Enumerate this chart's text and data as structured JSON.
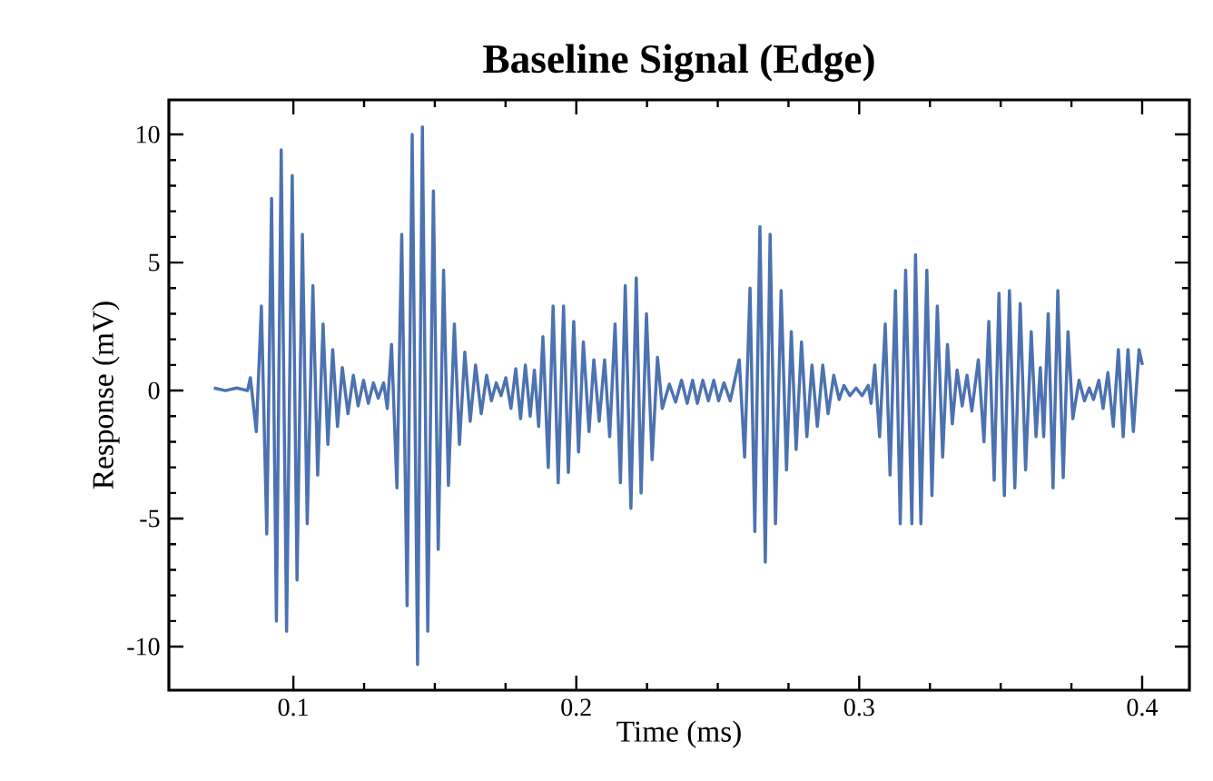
{
  "chart_data": {
    "type": "line",
    "title": "Baseline Signal (Edge)",
    "xlabel": "Time (ms)",
    "ylabel": "Response (mV)",
    "x": [
      0.0719,
      0.076,
      0.08,
      0.0838,
      0.0848,
      0.0869,
      0.0887,
      0.0906,
      0.0923,
      0.094,
      0.0957,
      0.0976,
      0.0996,
      0.1013,
      0.1032,
      0.1049,
      0.1069,
      0.1086,
      0.1105,
      0.1122,
      0.1139,
      0.1156,
      0.1173,
      0.1193,
      0.1212,
      0.1229,
      0.1248,
      0.1265,
      0.1283,
      0.13,
      0.1319,
      0.1332,
      0.1347,
      0.1366,
      0.1383,
      0.1402,
      0.142,
      0.1439,
      0.1456,
      0.1475,
      0.1495,
      0.1512,
      0.1531,
      0.1548,
      0.1569,
      0.1587,
      0.1606,
      0.1625,
      0.1644,
      0.1664,
      0.1683,
      0.17,
      0.1717,
      0.1734,
      0.1751,
      0.1769,
      0.1786,
      0.1803,
      0.182,
      0.1837,
      0.1852,
      0.1867,
      0.1882,
      0.1901,
      0.1918,
      0.1936,
      0.1955,
      0.1972,
      0.1991,
      0.2008,
      0.2025,
      0.2045,
      0.2062,
      0.2081,
      0.21,
      0.2118,
      0.2137,
      0.2156,
      0.2173,
      0.2193,
      0.2212,
      0.2229,
      0.2248,
      0.2268,
      0.2287,
      0.2304,
      0.2329,
      0.2351,
      0.2372,
      0.2392,
      0.2411,
      0.2428,
      0.2447,
      0.2467,
      0.2486,
      0.2503,
      0.2522,
      0.2544,
      0.2576,
      0.2595,
      0.2614,
      0.2631,
      0.2649,
      0.2668,
      0.2685,
      0.2704,
      0.2724,
      0.2743,
      0.276,
      0.2777,
      0.2796,
      0.2815,
      0.2833,
      0.2852,
      0.2871,
      0.289,
      0.291,
      0.2929,
      0.2946,
      0.2967,
      0.2989,
      0.301,
      0.3032,
      0.3042,
      0.3055,
      0.3072,
      0.3092,
      0.3109,
      0.3128,
      0.3145,
      0.3164,
      0.3186,
      0.3199,
      0.3218,
      0.3239,
      0.3257,
      0.3276,
      0.3295,
      0.3312,
      0.3329,
      0.3346,
      0.3364,
      0.3381,
      0.3398,
      0.3421,
      0.3441,
      0.3458,
      0.3477,
      0.3494,
      0.3513,
      0.3531,
      0.355,
      0.3569,
      0.3588,
      0.3608,
      0.3625,
      0.364,
      0.3652,
      0.3668,
      0.3685,
      0.3702,
      0.3721,
      0.3738,
      0.3755,
      0.3777,
      0.3796,
      0.3813,
      0.3828,
      0.3847,
      0.3862,
      0.3879,
      0.3898,
      0.3916,
      0.3933,
      0.395,
      0.3969,
      0.3989,
      0.4001
    ],
    "series": [
      {
        "color": "#4c72b0",
        "values": [
          0.1,
          0.0,
          0.1,
          0.0,
          0.5,
          -1.6,
          3.3,
          -5.6,
          7.5,
          -9.0,
          9.4,
          -9.4,
          8.4,
          -7.4,
          6.1,
          -5.2,
          4.1,
          -3.3,
          2.6,
          -2.1,
          1.6,
          -1.4,
          0.9,
          -0.9,
          0.6,
          -0.6,
          0.4,
          -0.5,
          0.3,
          -0.3,
          0.3,
          -0.7,
          1.8,
          -3.8,
          6.1,
          -8.4,
          10.0,
          -10.7,
          10.3,
          -9.4,
          7.8,
          -6.2,
          4.7,
          -3.7,
          2.6,
          -2.1,
          1.5,
          -1.2,
          1.0,
          -0.9,
          0.6,
          -0.4,
          0.3,
          -0.2,
          0.5,
          -0.7,
          0.85,
          -1.1,
          1.0,
          -1.0,
          0.8,
          -1.4,
          2.1,
          -3.0,
          3.3,
          -3.6,
          3.3,
          -3.2,
          2.7,
          -2.4,
          1.9,
          -1.6,
          1.2,
          -1.2,
          1.2,
          -1.8,
          2.6,
          -3.6,
          4.1,
          -4.6,
          4.4,
          -4.0,
          3.0,
          -2.7,
          1.3,
          -0.7,
          0.25,
          -0.45,
          0.4,
          -0.5,
          0.4,
          -0.5,
          0.4,
          -0.4,
          0.4,
          -0.4,
          0.3,
          -0.4,
          1.2,
          -2.6,
          4.0,
          -5.5,
          6.4,
          -6.7,
          6.1,
          -5.2,
          3.9,
          -3.1,
          2.3,
          -2.3,
          1.9,
          -1.8,
          1.0,
          -1.4,
          1.0,
          -0.9,
          0.6,
          -0.35,
          0.2,
          -0.2,
          0.1,
          -0.2,
          0.2,
          -0.5,
          1.0,
          -1.8,
          2.6,
          -3.3,
          3.9,
          -5.2,
          4.7,
          -5.2,
          5.3,
          -5.2,
          4.7,
          -4.1,
          3.3,
          -2.6,
          1.8,
          -1.3,
          0.8,
          -0.6,
          0.6,
          -0.8,
          1.2,
          -2.0,
          2.7,
          -3.5,
          3.8,
          -4.1,
          3.9,
          -3.8,
          3.4,
          -3.1,
          2.3,
          -1.8,
          0.9,
          -1.8,
          3.0,
          -3.8,
          3.9,
          -3.4,
          2.3,
          -1.1,
          0.4,
          -0.4,
          0.1,
          -0.35,
          0.4,
          -0.7,
          0.7,
          -1.4,
          1.6,
          -1.8,
          1.6,
          -1.6,
          1.6,
          1.0
        ]
      }
    ],
    "xlim": [
      0.056,
      0.4167
    ],
    "ylim": [
      -11.7,
      11.35
    ],
    "xticks": [
      0.1,
      0.2,
      0.3,
      0.4
    ],
    "yticks": [
      -10,
      -5,
      0,
      5,
      10
    ]
  }
}
